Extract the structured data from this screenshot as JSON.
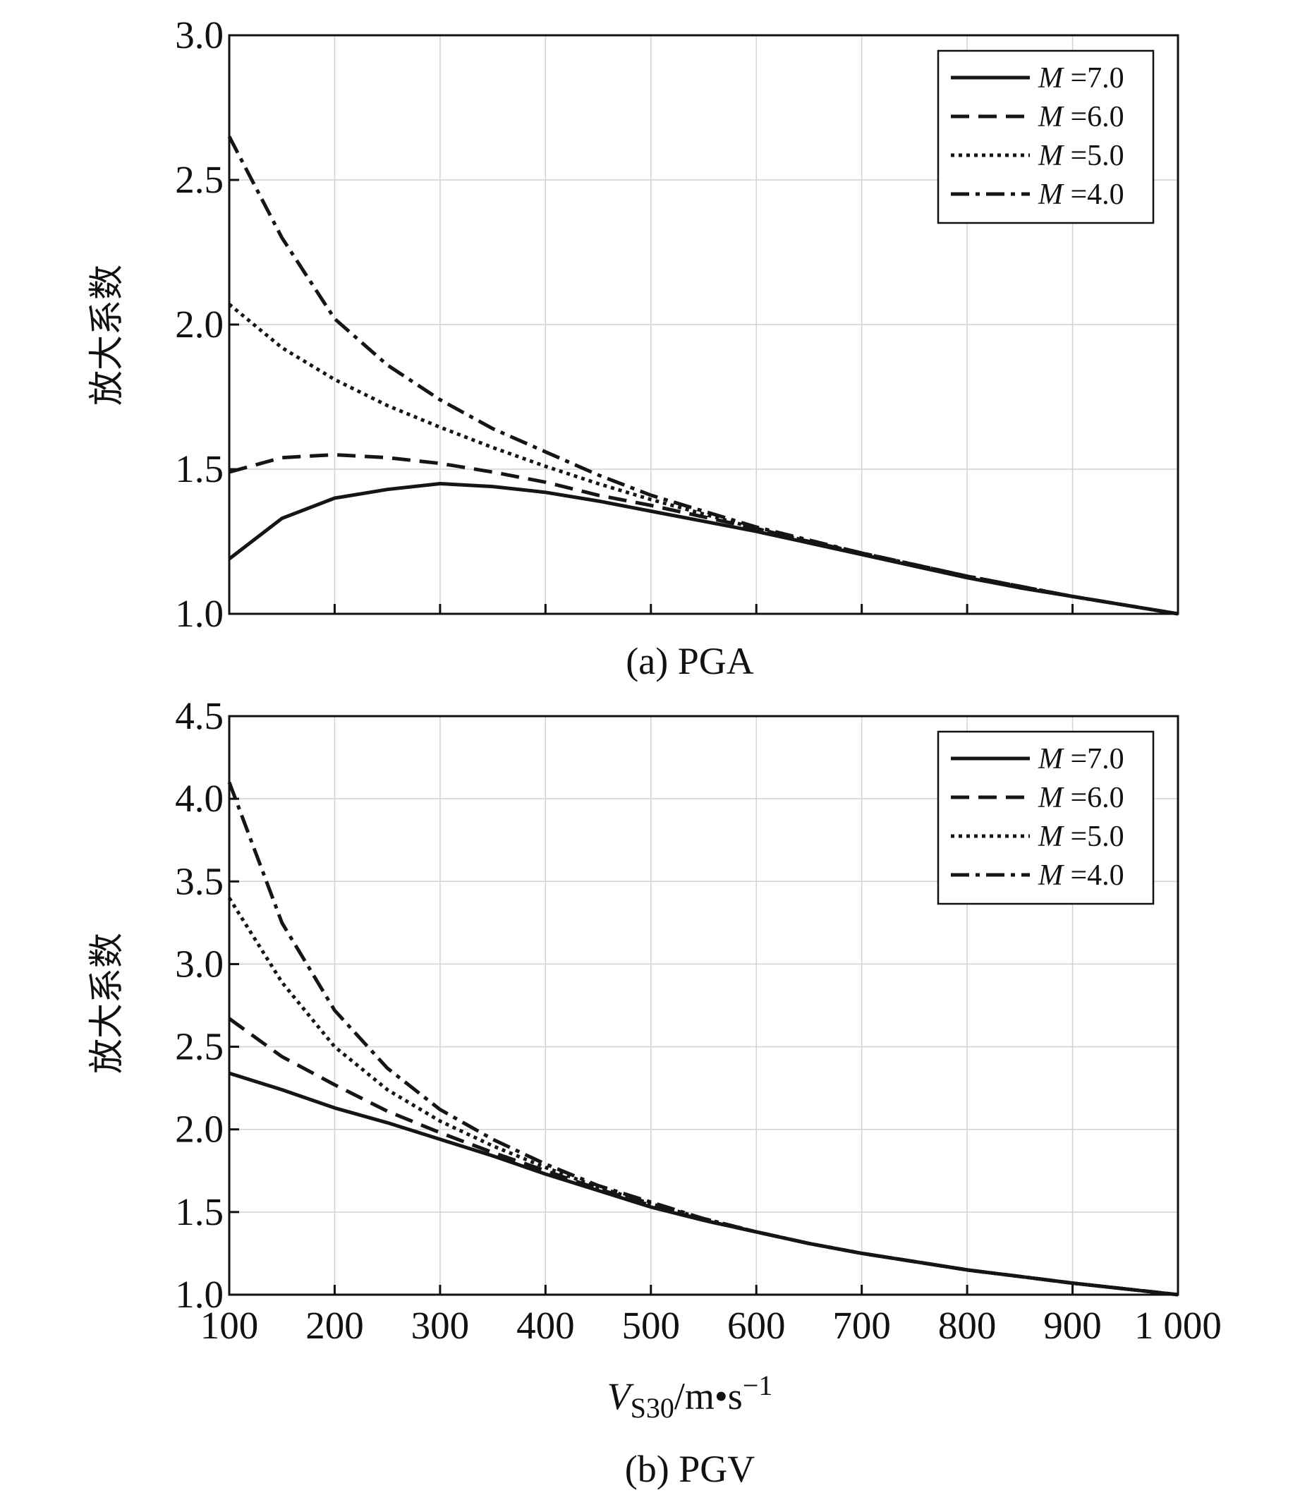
{
  "chart_data": [
    {
      "panel": "a",
      "type": "line",
      "caption": "(a) PGA",
      "xlabel": "",
      "ylabel": "放大系数",
      "xlim": [
        100,
        1000
      ],
      "ylim": [
        1.0,
        3.0
      ],
      "xticks": [
        100,
        200,
        300,
        400,
        500,
        600,
        700,
        800,
        900,
        1000
      ],
      "yticks": [
        1.0,
        1.5,
        2.0,
        2.5,
        3.0
      ],
      "ytick_labels": [
        "1.0",
        "1.5",
        "2.0",
        "2.5",
        "3.0"
      ],
      "show_xtick_labels": false,
      "grid": true,
      "legend_position": "top-right",
      "x": [
        100,
        150,
        200,
        250,
        300,
        350,
        400,
        450,
        500,
        550,
        600,
        650,
        700,
        750,
        800,
        850,
        900,
        950,
        1000
      ],
      "series": [
        {
          "name": "M=7.0",
          "legend_var": "M",
          "legend_value": "=7.0",
          "style": "solid",
          "values": [
            1.19,
            1.33,
            1.4,
            1.43,
            1.45,
            1.44,
            1.42,
            1.39,
            1.355,
            1.32,
            1.285,
            1.245,
            1.205,
            1.165,
            1.125,
            1.09,
            1.06,
            1.03,
            1.0
          ]
        },
        {
          "name": "M=6.0",
          "legend_var": "M",
          "legend_value": "=6.0",
          "style": "dashed",
          "values": [
            1.49,
            1.54,
            1.55,
            1.54,
            1.52,
            1.49,
            1.455,
            1.41,
            1.375,
            1.335,
            1.295,
            1.25,
            1.21,
            1.17,
            1.13,
            1.095,
            1.06,
            1.03,
            1.0
          ]
        },
        {
          "name": "M=5.0",
          "legend_var": "M",
          "legend_value": "=5.0",
          "style": "dotted",
          "values": [
            2.07,
            1.92,
            1.81,
            1.72,
            1.645,
            1.575,
            1.51,
            1.45,
            1.395,
            1.345,
            1.295,
            1.25,
            1.21,
            1.17,
            1.13,
            1.095,
            1.06,
            1.03,
            1.0
          ]
        },
        {
          "name": "M=4.0",
          "legend_var": "M",
          "legend_value": "=4.0",
          "style": "dashdot",
          "values": [
            2.65,
            2.3,
            2.02,
            1.86,
            1.74,
            1.64,
            1.56,
            1.48,
            1.41,
            1.355,
            1.3,
            1.255,
            1.21,
            1.17,
            1.13,
            1.095,
            1.06,
            1.03,
            1.0
          ]
        }
      ]
    },
    {
      "panel": "b",
      "type": "line",
      "caption": "(b) PGV",
      "xlabel_main": "V",
      "xlabel_sub": "S30",
      "xlabel_unit": "/m•s",
      "xlabel_sup": "−1",
      "ylabel": "放大系数",
      "xlim": [
        100,
        1000
      ],
      "ylim": [
        1.0,
        4.5
      ],
      "xticks": [
        100,
        200,
        300,
        400,
        500,
        600,
        700,
        800,
        900,
        1000
      ],
      "xtick_labels": [
        "100",
        "200",
        "300",
        "400",
        "500",
        "600",
        "700",
        "800",
        "900",
        "1 000"
      ],
      "yticks": [
        1.0,
        1.5,
        2.0,
        2.5,
        3.0,
        3.5,
        4.0,
        4.5
      ],
      "ytick_labels": [
        "1.0",
        "1.5",
        "2.0",
        "2.5",
        "3.0",
        "3.5",
        "4.0",
        "4.5"
      ],
      "show_xtick_labels": true,
      "grid": true,
      "legend_position": "top-right",
      "x": [
        100,
        150,
        200,
        250,
        300,
        350,
        400,
        450,
        500,
        550,
        600,
        650,
        700,
        750,
        800,
        850,
        900,
        950,
        1000
      ],
      "series": [
        {
          "name": "M=7.0",
          "legend_var": "M",
          "legend_value": "=7.0",
          "style": "solid",
          "values": [
            2.34,
            2.24,
            2.13,
            2.04,
            1.94,
            1.84,
            1.73,
            1.63,
            1.53,
            1.45,
            1.38,
            1.31,
            1.25,
            1.2,
            1.15,
            1.11,
            1.07,
            1.035,
            1.0
          ]
        },
        {
          "name": "M=6.0",
          "legend_var": "M",
          "legend_value": "=6.0",
          "style": "dashed",
          "values": [
            2.67,
            2.44,
            2.27,
            2.11,
            1.98,
            1.86,
            1.75,
            1.64,
            1.54,
            1.45,
            1.38,
            1.31,
            1.25,
            1.2,
            1.15,
            1.11,
            1.07,
            1.035,
            1.0
          ]
        },
        {
          "name": "M=5.0",
          "legend_var": "M",
          "legend_value": "=5.0",
          "style": "dotted",
          "values": [
            3.4,
            2.89,
            2.5,
            2.24,
            2.05,
            1.9,
            1.77,
            1.65,
            1.55,
            1.46,
            1.38,
            1.31,
            1.25,
            1.2,
            1.15,
            1.11,
            1.07,
            1.035,
            1.0
          ]
        },
        {
          "name": "M=4.0",
          "legend_var": "M",
          "legend_value": "=4.0",
          "style": "dashdot",
          "values": [
            4.1,
            3.25,
            2.72,
            2.37,
            2.12,
            1.94,
            1.79,
            1.66,
            1.56,
            1.46,
            1.38,
            1.31,
            1.25,
            1.2,
            1.15,
            1.11,
            1.07,
            1.035,
            1.0
          ]
        }
      ]
    }
  ]
}
